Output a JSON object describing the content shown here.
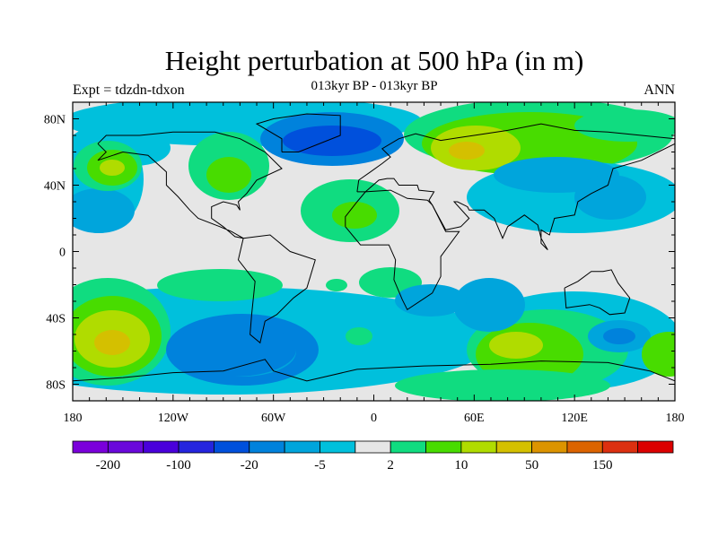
{
  "title": "Height perturbation at 500 hPa (in m)",
  "left_subtitle": "Expt = tdzdn-tdxon",
  "center_subtitle": "013kyr BP - 013kyr BP",
  "right_subtitle": "ANN",
  "chart_data": {
    "type": "heatmap",
    "projection": "cylindrical equidistant",
    "title": "Height perturbation at 500 hPa (in m)",
    "xlim": [
      -180,
      180
    ],
    "ylim": [
      -90,
      90
    ],
    "x_tick_labels": [
      "180",
      "120W",
      "60W",
      "0",
      "60E",
      "120E",
      "180"
    ],
    "y_tick_labels": [
      "80N",
      "40N",
      "0",
      "40S",
      "80S"
    ],
    "colorbar": {
      "levels": [
        -200,
        -150,
        -100,
        -50,
        -20,
        -10,
        -5,
        -2,
        2,
        5,
        10,
        20,
        50,
        100,
        150,
        200
      ],
      "labels": [
        "-200",
        "-100",
        "-20",
        "-5",
        "2",
        "10",
        "50",
        "150"
      ],
      "colors": [
        "#7B00DB",
        "#6A08DB",
        "#4A00DB",
        "#2525DE",
        "#0050DC",
        "#0082DC",
        "#00A5DC",
        "#00C0DC",
        "#E6E6E6",
        "#10DC80",
        "#48DC00",
        "#B0DC00",
        "#D4C000",
        "#DC9400",
        "#DC6400",
        "#DC3010",
        "#DC0000"
      ]
    }
  }
}
